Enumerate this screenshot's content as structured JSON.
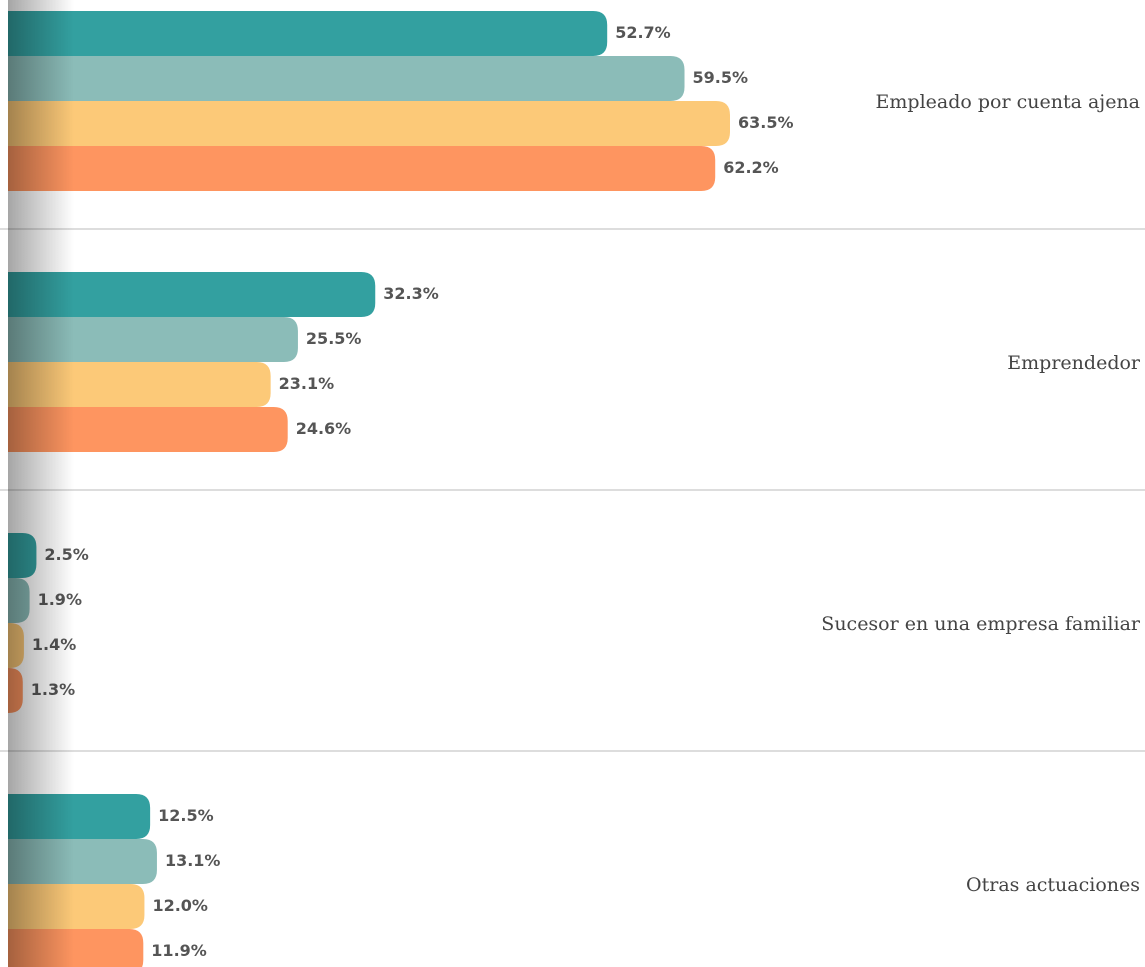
{
  "chart_data": {
    "type": "bar",
    "orientation": "horizontal",
    "categories": [
      "Empleado por cuenta ajena",
      "Emprendedor",
      "Sucesor en una empresa familiar",
      "Otras actuaciones"
    ],
    "xlim": [
      0,
      100
    ],
    "series": [
      {
        "color": "#33a0a0",
        "values": [
          52.7,
          32.3,
          2.5,
          12.5
        ],
        "value_labels": [
          "52.7%",
          "32.3%",
          "2.5%",
          "12.5%"
        ]
      },
      {
        "color": "#8bbcb8",
        "values": [
          59.5,
          25.5,
          1.9,
          13.1
        ],
        "value_labels": [
          "59.5%",
          "25.5%",
          "1.9%",
          "13.1%"
        ]
      },
      {
        "color": "#fcc978",
        "values": [
          63.5,
          23.1,
          1.4,
          12.0
        ],
        "value_labels": [
          "63.5%",
          "23.1%",
          "1.4%",
          "12.0%"
        ]
      },
      {
        "color": "#fe9560",
        "values": [
          62.2,
          24.6,
          1.3,
          11.9
        ],
        "value_labels": [
          "62.2%",
          "24.6%",
          "1.3%",
          "11.9%"
        ]
      }
    ]
  }
}
